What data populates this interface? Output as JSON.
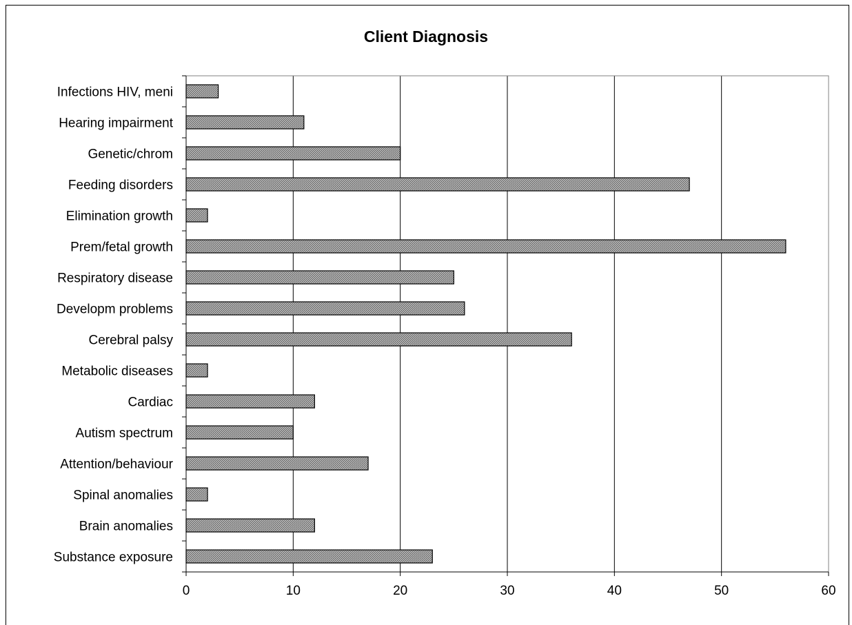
{
  "chart_data": {
    "type": "bar",
    "orientation": "horizontal",
    "title": "Client Diagnosis",
    "xlabel": "",
    "ylabel": "",
    "categories": [
      "Infections HIV, meni",
      "Hearing impairment",
      "Genetic/chrom",
      "Feeding disorders",
      "Elimination growth",
      "Prem/fetal growth",
      "Respiratory disease",
      "Developm problems",
      "Cerebral palsy",
      "Metabolic diseases",
      "Cardiac",
      "Autism spectrum",
      "Attention/behaviour",
      "Spinal anomalies",
      "Brain anomalies",
      "Substance exposure"
    ],
    "values": [
      3,
      11,
      20,
      47,
      2,
      56,
      25,
      26,
      36,
      2,
      12,
      10,
      17,
      2,
      12,
      23
    ],
    "xlim": [
      0,
      60
    ],
    "xticks": [
      "0",
      "10",
      "20",
      "30",
      "40",
      "50",
      "60"
    ],
    "grid": "vertical",
    "legend": "none",
    "bar_fill": "#9a9a9a",
    "bar_pattern": "crosshatch"
  }
}
